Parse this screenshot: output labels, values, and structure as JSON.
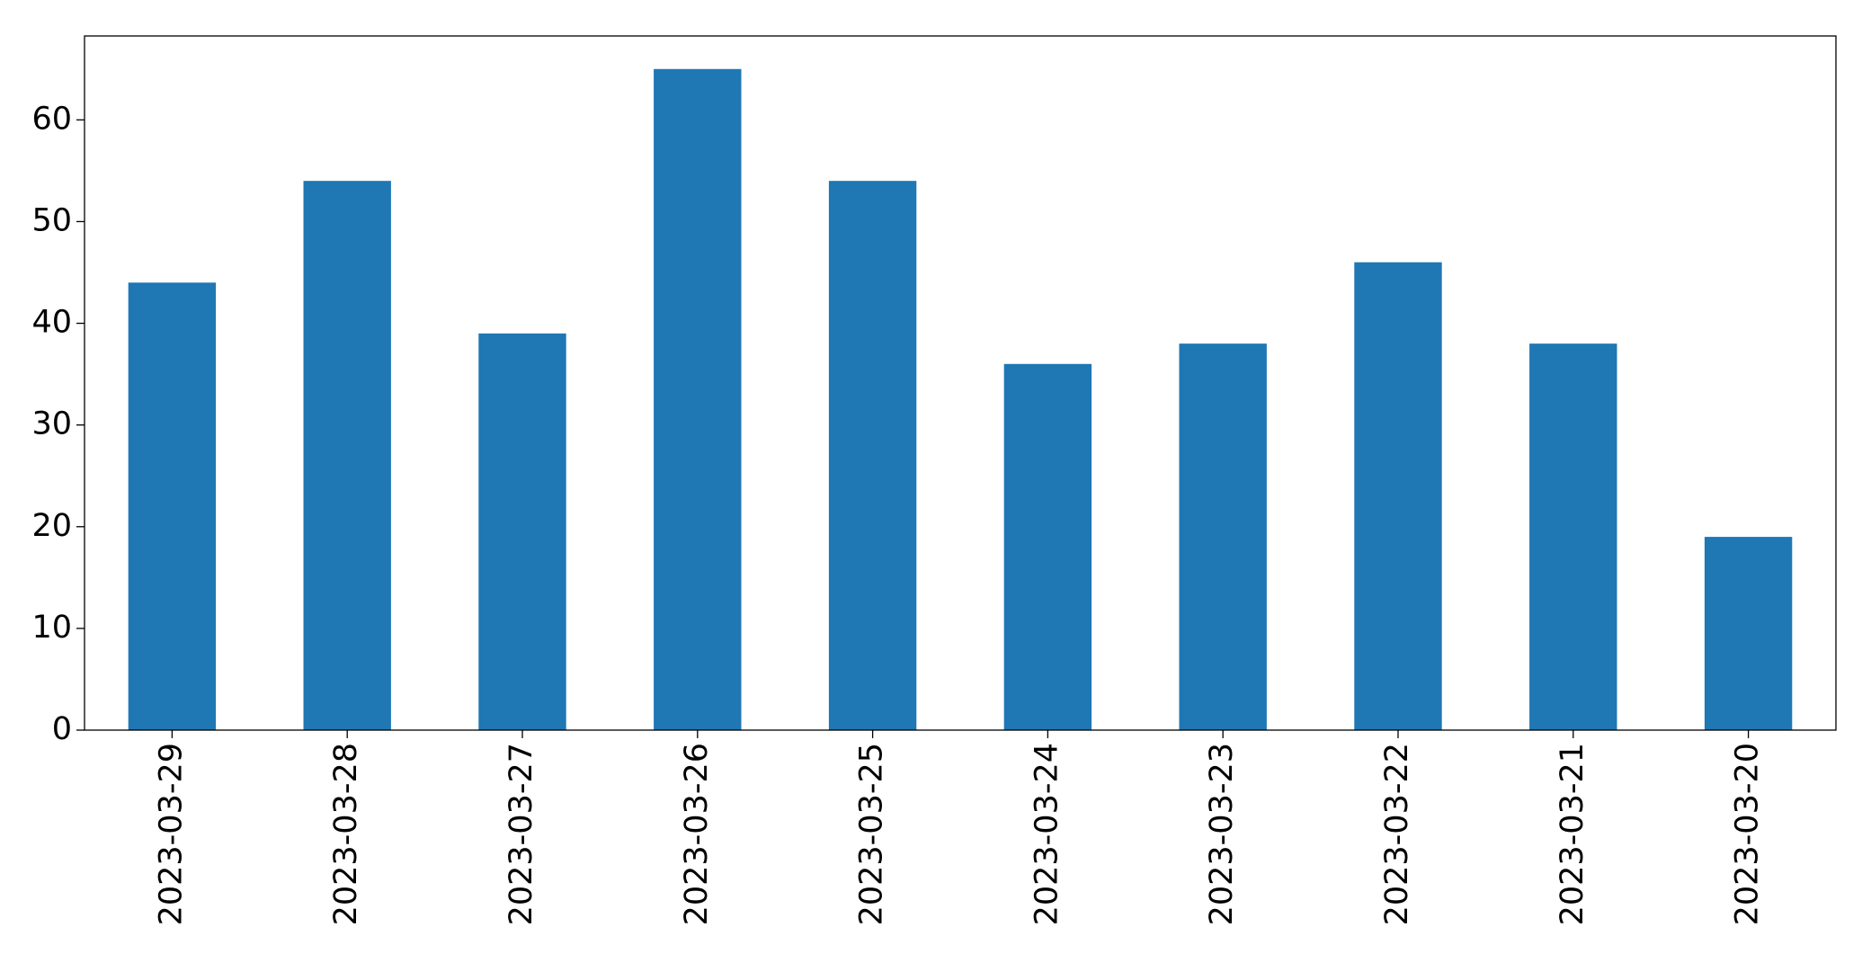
{
  "chart_data": {
    "type": "bar",
    "categories": [
      "2023-03-29",
      "2023-03-28",
      "2023-03-27",
      "2023-03-26",
      "2023-03-25",
      "2023-03-24",
      "2023-03-23",
      "2023-03-22",
      "2023-03-21",
      "2023-03-20"
    ],
    "values": [
      44,
      54,
      39,
      65,
      54,
      36,
      38,
      46,
      38,
      19
    ],
    "color": "#1f77b4",
    "ylim": [
      0,
      68.25
    ],
    "yticks": [
      0,
      10,
      20,
      30,
      40,
      50,
      60
    ],
    "grid": false
  }
}
